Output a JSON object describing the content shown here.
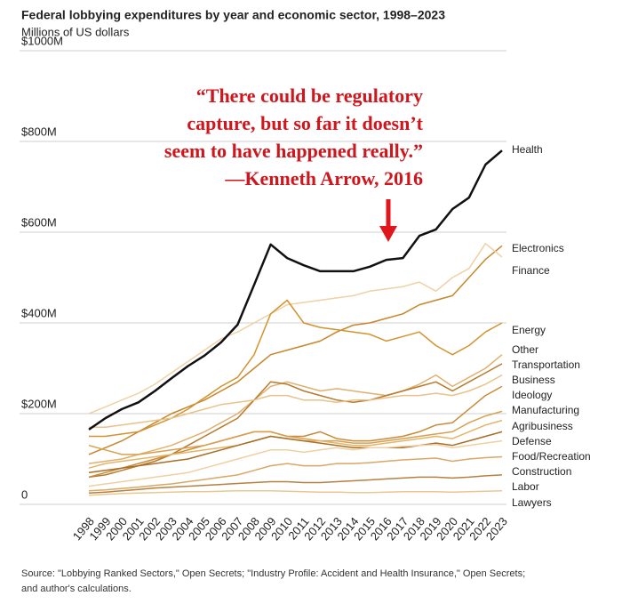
{
  "chart_data": {
    "type": "line",
    "title": "Federal lobbying expenditures by year and economic sector, 1998–2023",
    "subtitle": "Millions of US dollars",
    "annotation": [
      "“There could be regulatory",
      "capture, but so far it doesn’t",
      "seem to have happened really.”",
      "—Kenneth Arrow, 2016"
    ],
    "source": [
      "Source: \"Lobbying Ranked Sectors,\" Open Secrets; \"Industry Profile: Accident and Health Insurance,\" Open Secrets;",
      "and author's calculations."
    ],
    "categories": [
      "1998",
      "1999",
      "2000",
      "2001",
      "2002",
      "2003",
      "2004",
      "2005",
      "2006",
      "2007",
      "2008",
      "2009",
      "2010",
      "2011",
      "2012",
      "2013",
      "2014",
      "2015",
      "2016",
      "2017",
      "2018",
      "2019",
      "2020",
      "2021",
      "2022",
      "2023"
    ],
    "ylim": [
      0,
      1000
    ],
    "yticks": [
      0,
      {
        "value": 200,
        "label": "$200M"
      },
      {
        "value": 400,
        "label": "$400M"
      },
      {
        "value": 600,
        "label": "$600M"
      },
      {
        "value": 800,
        "label": "$800M"
      },
      {
        "value": 1000,
        "label": "$1000M"
      }
    ],
    "grid": true,
    "series": [
      {
        "name": "Health",
        "color": "#111111",
        "values": [
          165,
          190,
          210,
          225,
          250,
          278,
          305,
          328,
          357,
          396,
          484,
          573,
          543,
          527,
          514,
          514,
          514,
          524,
          539,
          543,
          592,
          606,
          651,
          676,
          749,
          780
        ]
      },
      {
        "name": "Electronics",
        "color": "#c8862a",
        "values": [
          110,
          125,
          140,
          160,
          180,
          200,
          215,
          230,
          250,
          270,
          300,
          330,
          340,
          350,
          360,
          380,
          395,
          400,
          410,
          420,
          440,
          450,
          460,
          500,
          540,
          570
        ]
      },
      {
        "name": "Finance",
        "color": "#efd1a6",
        "values": [
          200,
          215,
          230,
          245,
          265,
          290,
          315,
          340,
          365,
          380,
          400,
          420,
          440,
          445,
          450,
          455,
          460,
          470,
          475,
          480,
          490,
          470,
          500,
          520,
          575,
          545
        ]
      },
      {
        "name": "Energy",
        "color": "#d4932f",
        "values": [
          150,
          150,
          155,
          160,
          175,
          190,
          210,
          235,
          260,
          280,
          330,
          420,
          450,
          400,
          390,
          385,
          380,
          375,
          360,
          370,
          380,
          350,
          330,
          350,
          380,
          400
        ]
      },
      {
        "name": "Other",
        "color": "#e0b070",
        "values": [
          90,
          95,
          100,
          110,
          120,
          130,
          145,
          160,
          180,
          200,
          230,
          260,
          270,
          260,
          250,
          255,
          250,
          245,
          240,
          250,
          265,
          285,
          260,
          280,
          300,
          330
        ]
      },
      {
        "name": "Transportation",
        "color": "#b87a2a",
        "values": [
          60,
          65,
          75,
          85,
          95,
          110,
          130,
          150,
          170,
          190,
          230,
          270,
          265,
          250,
          240,
          230,
          225,
          230,
          240,
          250,
          260,
          270,
          250,
          270,
          290,
          310
        ]
      },
      {
        "name": "Business",
        "color": "#e8c28a",
        "values": [
          170,
          170,
          175,
          180,
          185,
          190,
          200,
          210,
          220,
          225,
          230,
          240,
          240,
          230,
          230,
          225,
          230,
          230,
          235,
          240,
          240,
          245,
          240,
          250,
          265,
          285
        ]
      },
      {
        "name": "Ideology",
        "color": "#c98a3a",
        "values": [
          60,
          70,
          80,
          90,
          100,
          110,
          120,
          130,
          140,
          150,
          160,
          160,
          150,
          150,
          160,
          145,
          140,
          140,
          145,
          150,
          160,
          175,
          180,
          210,
          240,
          260
        ]
      },
      {
        "name": "Manufacturing",
        "color": "#d9a050",
        "values": [
          130,
          120,
          110,
          110,
          115,
          120,
          125,
          130,
          140,
          150,
          160,
          160,
          150,
          145,
          140,
          140,
          135,
          135,
          140,
          145,
          150,
          155,
          160,
          180,
          195,
          205
        ]
      },
      {
        "name": "Agribusiness",
        "color": "#e4b468",
        "values": [
          80,
          90,
          95,
          100,
          105,
          110,
          115,
          120,
          125,
          130,
          140,
          150,
          145,
          140,
          140,
          135,
          130,
          130,
          135,
          140,
          145,
          150,
          145,
          160,
          175,
          185
        ]
      },
      {
        "name": "Defense",
        "color": "#a86e26",
        "values": [
          70,
          75,
          80,
          85,
          90,
          95,
          100,
          110,
          120,
          130,
          140,
          150,
          145,
          140,
          135,
          130,
          125,
          125,
          125,
          125,
          130,
          135,
          130,
          140,
          150,
          160
        ]
      },
      {
        "name": "Food/Recreation",
        "color": "#f0d0a0",
        "values": [
          40,
          45,
          50,
          55,
          60,
          65,
          70,
          80,
          90,
          100,
          110,
          120,
          120,
          115,
          120,
          125,
          120,
          125,
          125,
          128,
          130,
          132,
          125,
          130,
          135,
          140
        ]
      },
      {
        "name": "Construction",
        "color": "#d8a864",
        "values": [
          30,
          32,
          35,
          38,
          42,
          45,
          50,
          55,
          60,
          65,
          75,
          85,
          90,
          85,
          85,
          90,
          90,
          92,
          95,
          98,
          100,
          102,
          95,
          100,
          103,
          105
        ]
      },
      {
        "name": "Labor",
        "color": "#b88040",
        "values": [
          25,
          27,
          30,
          33,
          36,
          38,
          40,
          42,
          44,
          46,
          48,
          50,
          50,
          48,
          48,
          50,
          52,
          54,
          56,
          58,
          60,
          60,
          58,
          60,
          63,
          65
        ]
      },
      {
        "name": "Lawyers",
        "color": "#e8c890",
        "values": [
          20,
          22,
          24,
          25,
          26,
          27,
          28,
          28,
          29,
          30,
          30,
          30,
          29,
          28,
          27,
          27,
          26,
          26,
          27,
          28,
          28,
          28,
          27,
          28,
          29,
          30
        ]
      }
    ]
  }
}
